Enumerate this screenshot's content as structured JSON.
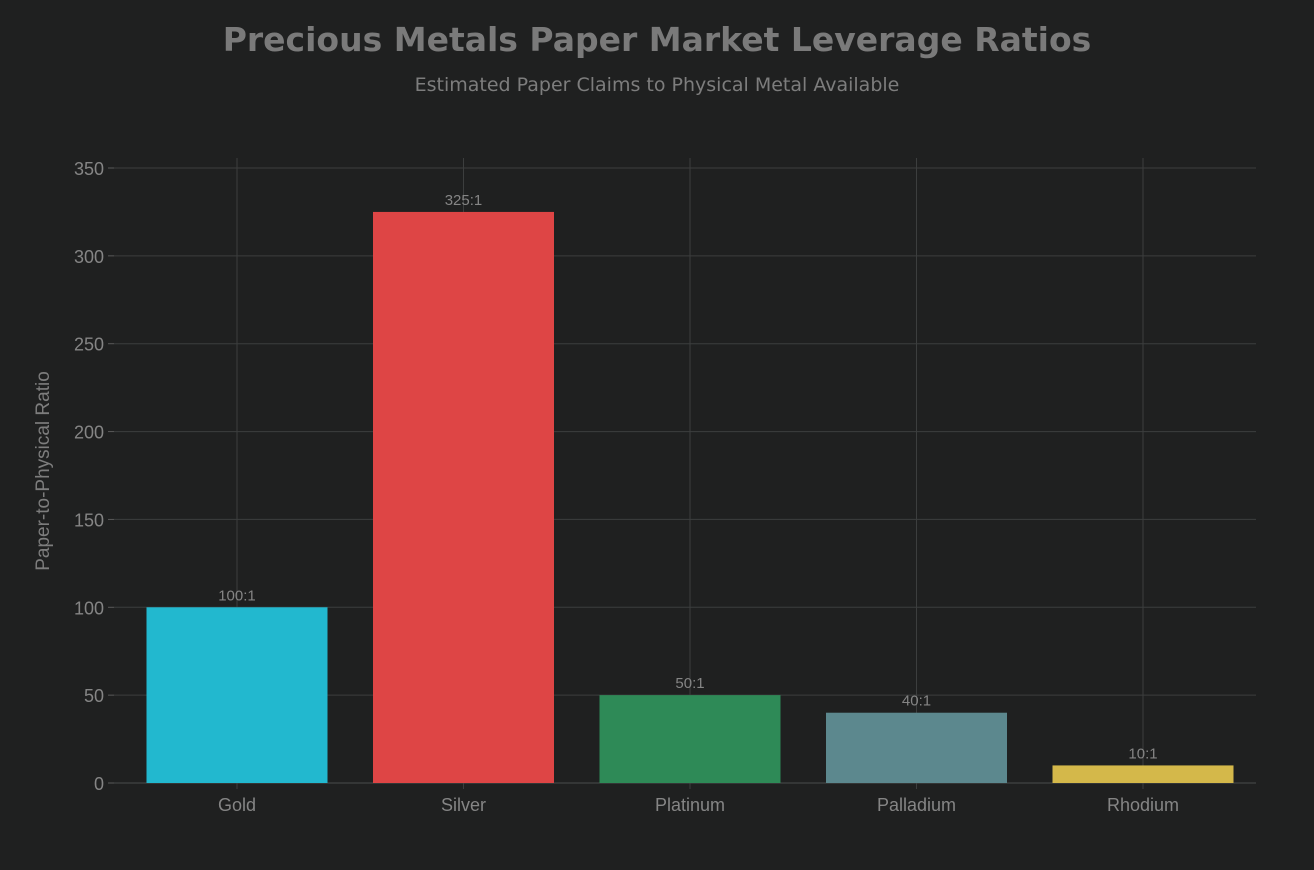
{
  "chart_data": {
    "type": "bar",
    "title": "Precious Metals Paper Market Leverage Ratios",
    "subtitle": "Estimated Paper Claims to Physical Metal Available",
    "xlabel": "",
    "ylabel": "Paper-to-Physical Ratio",
    "ylim": [
      0,
      350
    ],
    "yticks": [
      0,
      50,
      100,
      150,
      200,
      250,
      300,
      350
    ],
    "grid": true,
    "categories": [
      "Gold",
      "Silver",
      "Platinum",
      "Palladium",
      "Rhodium"
    ],
    "values": [
      100,
      325,
      50,
      40,
      10
    ],
    "data_labels": [
      "100:1",
      "325:1",
      "50:1",
      "40:1",
      "10:1"
    ],
    "colors": [
      "#22b8cf",
      "#de4545",
      "#2e8a57",
      "#5c888e",
      "#d4b84a"
    ]
  }
}
